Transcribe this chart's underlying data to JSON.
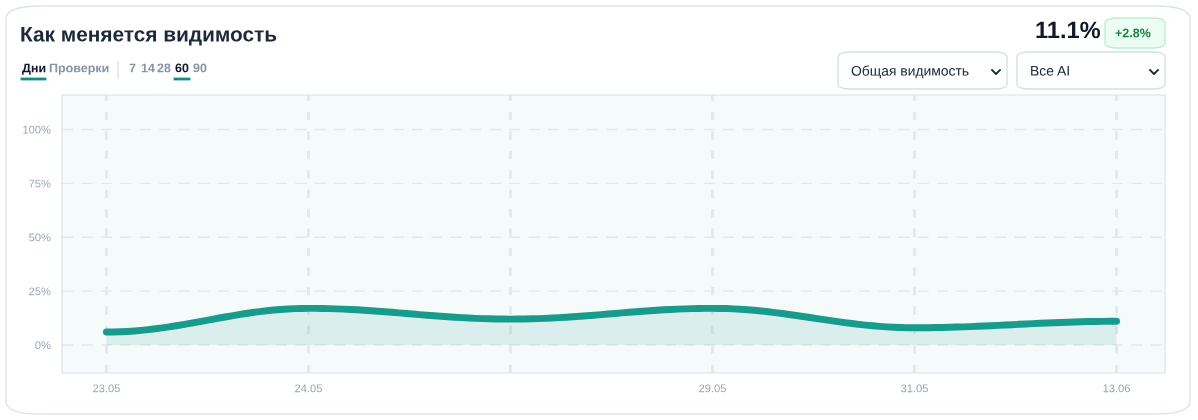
{
  "chart_data": {
    "type": "area",
    "title": "Как меняется видимость",
    "categories": [
      "23.05",
      "24.05",
      null,
      "29.05",
      "31.05",
      "13.06"
    ],
    "series": [
      {
        "color": "#179b8d",
        "values": [
          6,
          17,
          12,
          17,
          8,
          11
        ]
      }
    ],
    "ylim": [
      -13,
      116
    ],
    "yticks": [
      {
        "value": 0,
        "label": "0%"
      },
      {
        "value": 25,
        "label": "25%"
      },
      {
        "value": 50,
        "label": "50%"
      },
      {
        "value": 75,
        "label": "75%"
      },
      {
        "value": 100,
        "label": "100%"
      }
    ],
    "grid": true,
    "marker": "none",
    "line_style": "solid",
    "annotations": [
      "Дни",
      "Проверки",
      "7",
      "14",
      "28",
      "60",
      "90",
      "11.1%",
      "+2.8%",
      "Общая видимость",
      "Все AI"
    ]
  }
}
